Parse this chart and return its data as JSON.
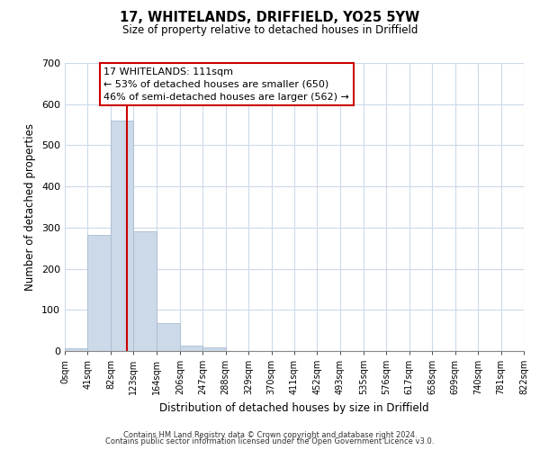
{
  "title": "17, WHITELANDS, DRIFFIELD, YO25 5YW",
  "subtitle": "Size of property relative to detached houses in Driffield",
  "xlabel": "Distribution of detached houses by size in Driffield",
  "ylabel": "Number of detached properties",
  "bar_values": [
    7,
    282,
    560,
    292,
    68,
    14,
    8,
    0,
    0,
    0,
    0,
    0,
    0,
    0,
    0,
    0,
    0,
    0,
    0,
    0
  ],
  "bin_edges": [
    0,
    41,
    82,
    123,
    164,
    206,
    247,
    288,
    329,
    370,
    411,
    452,
    493,
    535,
    576,
    617,
    658,
    699,
    740,
    781,
    822
  ],
  "tick_labels": [
    "0sqm",
    "41sqm",
    "82sqm",
    "123sqm",
    "164sqm",
    "206sqm",
    "247sqm",
    "288sqm",
    "329sqm",
    "370sqm",
    "411sqm",
    "452sqm",
    "493sqm",
    "535sqm",
    "576sqm",
    "617sqm",
    "658sqm",
    "699sqm",
    "740sqm",
    "781sqm",
    "822sqm"
  ],
  "bar_color": "#ccd9e8",
  "bar_edge_color": "#aabdd0",
  "vline_x": 111,
  "vline_color": "#cc0000",
  "ylim": [
    0,
    700
  ],
  "yticks": [
    0,
    100,
    200,
    300,
    400,
    500,
    600,
    700
  ],
  "annotation_title": "17 WHITELANDS: 111sqm",
  "annotation_line1": "← 53% of detached houses are smaller (650)",
  "annotation_line2": "46% of semi-detached houses are larger (562) →",
  "footer_line1": "Contains HM Land Registry data © Crown copyright and database right 2024.",
  "footer_line2": "Contains public sector information licensed under the Open Government Licence v3.0.",
  "background_color": "#ffffff",
  "grid_color": "#ccdaea"
}
